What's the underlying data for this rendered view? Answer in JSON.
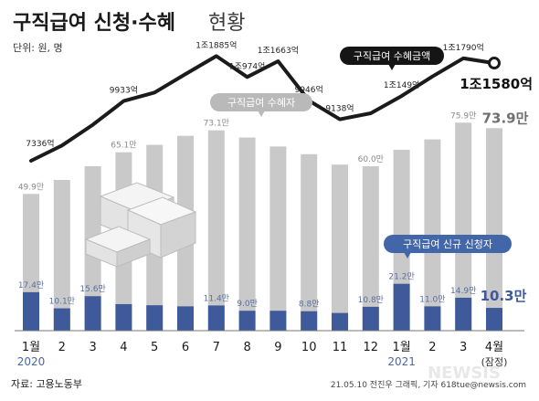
{
  "title_main": "구직급여 신청·수혜",
  "title_sub": "현황",
  "unit_label": "단위: 원, 명",
  "source_label": "자료: 고용노동부",
  "credit": "21.05.10 전진우 그래픽, 기자 618tue@newsis.com",
  "watermark": "NEWSIS",
  "colors": {
    "title": "#1a1a1a",
    "gray_bar": "#c9c9c9",
    "blue_bar": "#3e5a9b",
    "line": "#1b1b1b",
    "year_label": "#4a66a8",
    "label_gray": "#8a8a8a",
    "badge_blue": "#4266a8",
    "badge_gray": "#b9b9b9",
    "badge_black": "#151515"
  },
  "chart_data": {
    "type": "bar",
    "categories": [
      "1월",
      "2",
      "3",
      "4",
      "5",
      "6",
      "7",
      "8",
      "9",
      "10",
      "11",
      "12",
      "1월",
      "2",
      "3",
      "4월"
    ],
    "year_labels": [
      "2020",
      "",
      "",
      "",
      "",
      "",
      "",
      "",
      "",
      "",
      "",
      "",
      "2021",
      "",
      "",
      "(잠정)"
    ],
    "series": [
      {
        "name": "구직급여 수혜자",
        "unit": "만",
        "values": [
          49.9,
          55.0,
          60.0,
          65.1,
          67.8,
          71.1,
          73.1,
          70.5,
          67.2,
          64.4,
          60.6,
          60.0,
          66.0,
          69.8,
          75.9,
          73.9
        ],
        "labels": [
          "49.9만",
          "",
          "",
          "65.1만",
          "",
          "",
          "73.1만",
          "",
          "",
          "",
          "",
          "60.0만",
          "",
          "",
          "75.9만",
          "73.9만"
        ]
      },
      {
        "name": "구직급여 신규 신청자",
        "unit": "만",
        "values": [
          17.4,
          10.1,
          15.6,
          12.0,
          11.5,
          11.0,
          11.4,
          9.0,
          9.0,
          8.8,
          8.0,
          10.8,
          21.2,
          11.0,
          14.9,
          10.3
        ],
        "labels": [
          "17.4만",
          "10.1만",
          "15.6만",
          "",
          "",
          "",
          "11.4만",
          "9.0만",
          "",
          "8.8만",
          "",
          "10.8만",
          "21.2만",
          "11.0만",
          "14.9만",
          "10.3만"
        ]
      },
      {
        "name": "구직급여 수혜금액",
        "unit": "억",
        "values": [
          7336,
          8000,
          8900,
          9933,
          10300,
          11100,
          11885,
          10974,
          11663,
          9946,
          9138,
          9400,
          10149,
          11000,
          11790,
          11580
        ],
        "labels": [
          "7336억",
          "",
          "",
          "9933억",
          "",
          "",
          "1조1885억",
          "1조974억",
          "1조1663억",
          "9946억",
          "9138억",
          "",
          "1조149억",
          "",
          "1조1790억",
          "1조1580억"
        ]
      }
    ],
    "annotations": {
      "recipients": "구직급여 수혜자",
      "applicants": "구직급여 신규 신청자",
      "amount": "구직급여 수혜금액"
    },
    "grid": false,
    "legend": "none"
  }
}
